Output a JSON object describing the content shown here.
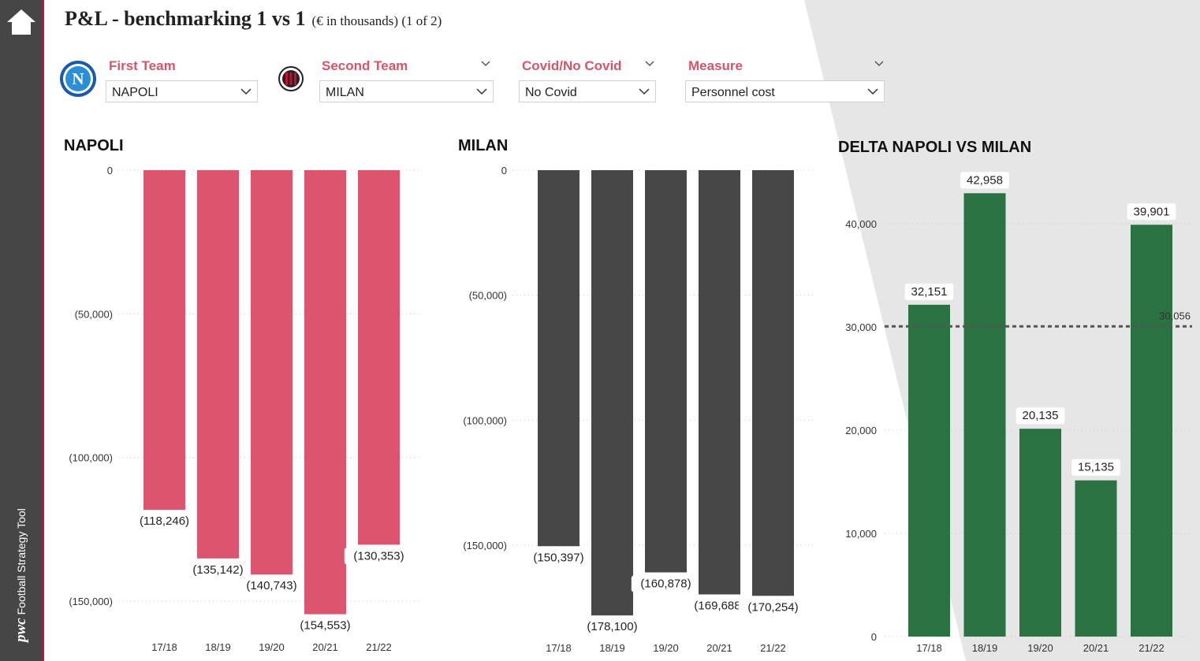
{
  "title": {
    "main": "P&L - benchmarking 1 vs 1",
    "sub": "(€ in thousands) (1 of 2)"
  },
  "sidebar": {
    "brand_logo": "pwc",
    "brand_text": "Football Strategy Tool",
    "home_icon": "home-icon"
  },
  "filters": {
    "first_team": {
      "label": "First Team",
      "value": "NAPOLI"
    },
    "second_team": {
      "label": "Second Team",
      "value": "MILAN"
    },
    "covid": {
      "label": "Covid/No Covid",
      "value": "No Covid"
    },
    "measure": {
      "label": "Measure",
      "value": "Personnel cost"
    }
  },
  "colors": {
    "napoli": "#dc546e",
    "milan": "#474747",
    "delta": "#2a7242",
    "accent": "#d9546a"
  },
  "chart_data": [
    {
      "type": "bar",
      "title": "NAPOLI",
      "categories": [
        "17/18",
        "18/19",
        "19/20",
        "20/21",
        "21/22"
      ],
      "values": [
        -118246,
        -135142,
        -140743,
        -154553,
        -130353
      ],
      "labels": [
        "(118,246)",
        "(135,142)",
        "(140,743)",
        "(154,553)",
        "(130,353)"
      ],
      "ylim": [
        -165000,
        0
      ],
      "ticks": [
        0,
        -50000,
        -100000,
        -150000
      ],
      "tick_labels": [
        "0",
        "(50,000)",
        "(100,000)",
        "(150,000)"
      ]
    },
    {
      "type": "bar",
      "title": "MILAN",
      "categories": [
        "17/18",
        "18/19",
        "19/20",
        "20/21",
        "21/22"
      ],
      "values": [
        -150397,
        -178100,
        -160878,
        -169688,
        -170254
      ],
      "labels": [
        "(150,397)",
        "(178,100)",
        "(160,878)",
        "(169,688)",
        "(170,254)"
      ],
      "ylim": [
        -185000,
        0
      ],
      "ticks": [
        0,
        -50000,
        -100000,
        -150000
      ],
      "tick_labels": [
        "0",
        "(50,000)",
        "(100,000)",
        "(150,000)"
      ]
    },
    {
      "type": "bar",
      "title": "DELTA NAPOLI VS MILAN",
      "categories": [
        "17/18",
        "18/19",
        "19/20",
        "20/21",
        "21/22"
      ],
      "values": [
        32151,
        42958,
        20135,
        15135,
        39901
      ],
      "labels": [
        "32,151",
        "42,958",
        "20,135",
        "15,135",
        "39,901"
      ],
      "ylim": [
        0,
        45000
      ],
      "ticks": [
        0,
        10000,
        20000,
        30000,
        40000
      ],
      "tick_labels": [
        "0",
        "10,000",
        "20,000",
        "30,000",
        "40,000"
      ],
      "average": 30056,
      "average_label": "30,056"
    }
  ]
}
